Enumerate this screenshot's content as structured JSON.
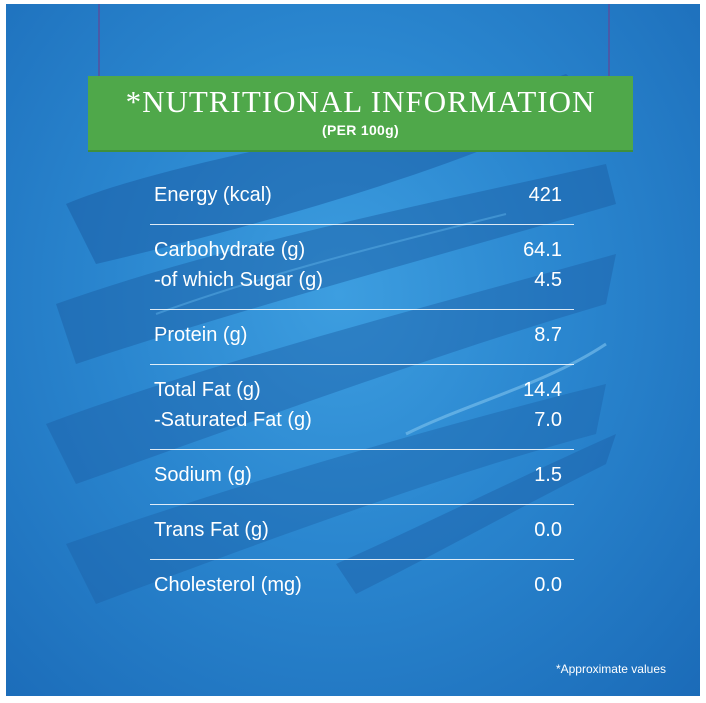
{
  "header": {
    "title": "*NUTRITIONAL INFORMATION",
    "subtitle": "(PER 100g)"
  },
  "rows": [
    {
      "lines": [
        {
          "label": "Energy (kcal)",
          "value": "421"
        }
      ]
    },
    {
      "lines": [
        {
          "label": "Carbohydrate (g)",
          "value": "64.1"
        },
        {
          "label": "-of which Sugar (g)",
          "value": "4.5"
        }
      ]
    },
    {
      "lines": [
        {
          "label": "Protein (g)",
          "value": "8.7"
        }
      ]
    },
    {
      "lines": [
        {
          "label": "Total Fat (g)",
          "value": "14.4"
        },
        {
          "label": "-Saturated Fat (g)",
          "value": "7.0"
        }
      ]
    },
    {
      "lines": [
        {
          "label": "Sodium (g)",
          "value": "1.5"
        }
      ]
    },
    {
      "lines": [
        {
          "label": "Trans Fat (g)",
          "value": "0.0"
        }
      ]
    },
    {
      "lines": [
        {
          "label": "Cholesterol (mg)",
          "value": "0.0"
        }
      ]
    }
  ],
  "footnote": "*Approximate values",
  "colors": {
    "background": "#2a86cf",
    "banner": "#4fa84a",
    "text": "#ffffff"
  }
}
